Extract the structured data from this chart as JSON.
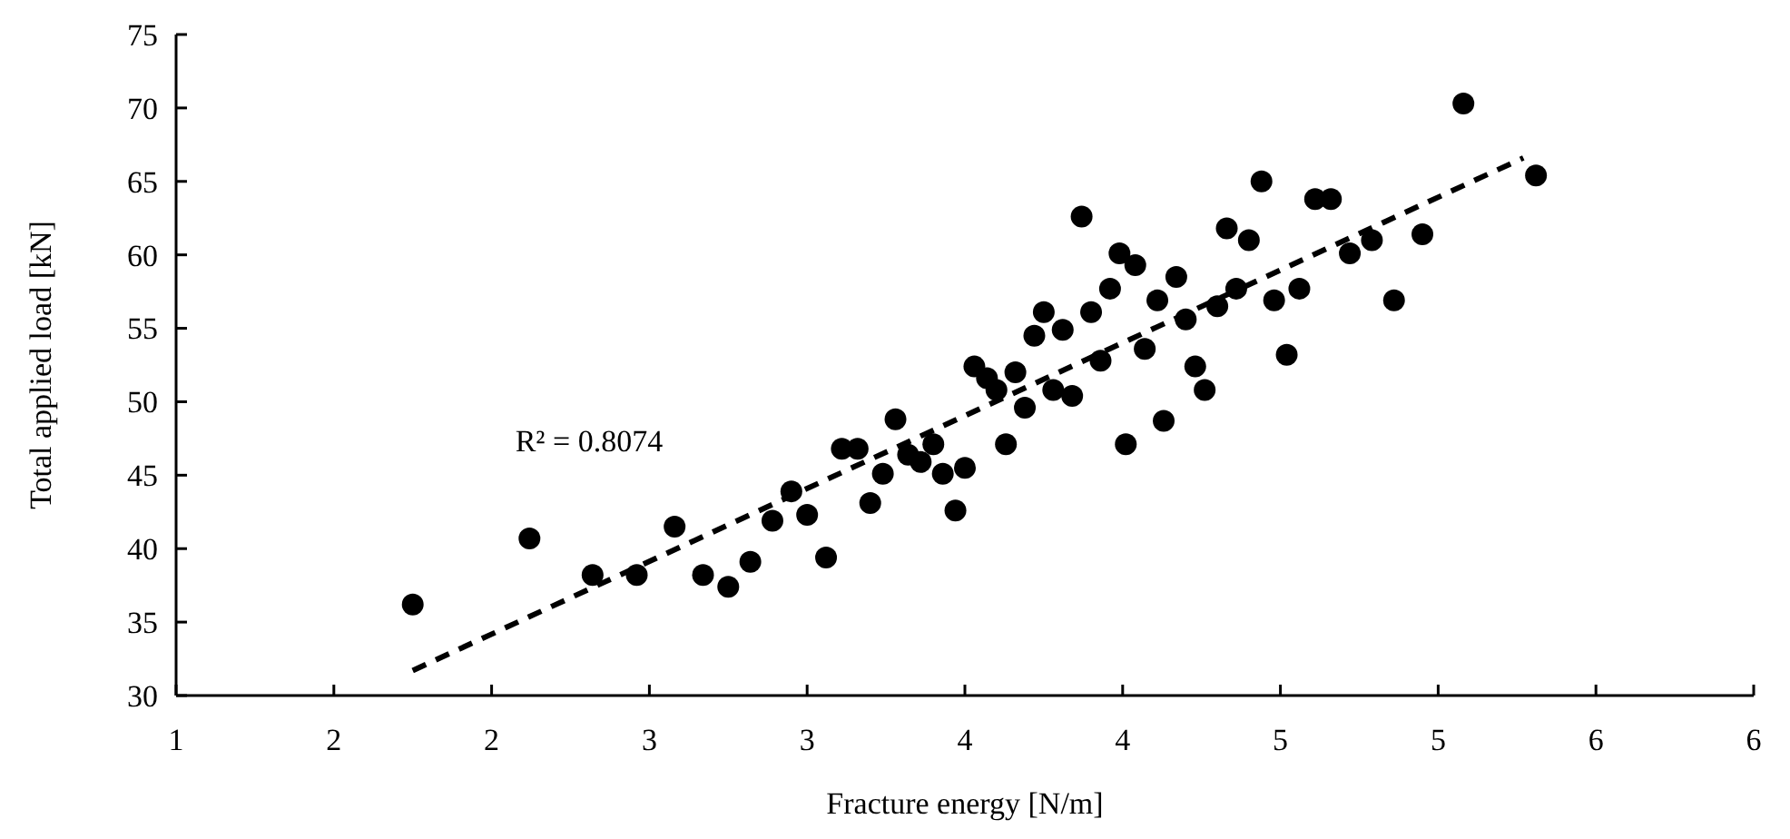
{
  "chart_data": {
    "type": "scatter",
    "xlabel": "Fracture energy [N/m]",
    "ylabel": "Total applied load [kN]",
    "xlim": [
      1,
      6
    ],
    "ylim": [
      30,
      75
    ],
    "xticks": [
      1,
      {
        "value": 1.5,
        "label": "2"
      },
      2,
      {
        "value": 2.5,
        "label": "3"
      },
      3,
      {
        "value": 3.5,
        "label": "4"
      },
      4,
      {
        "value": 4.5,
        "label": "5"
      },
      5,
      {
        "value": 5.5,
        "label": "6"
      },
      6
    ],
    "yticks": [
      30,
      35,
      40,
      45,
      50,
      55,
      60,
      65,
      70,
      75
    ],
    "grid": false,
    "marker": "circle",
    "annotations": [
      "R² = 0.8074"
    ],
    "series": [
      {
        "color": "#000000",
        "x": [
          1.75,
          2.12,
          2.32,
          2.46,
          2.58,
          2.67,
          2.75,
          2.82,
          2.89,
          2.95,
          3.0,
          3.06,
          3.11,
          3.16,
          3.2,
          3.24,
          3.28,
          3.32,
          3.36,
          3.4,
          3.43,
          3.47,
          3.5,
          3.53,
          3.57,
          3.6,
          3.63,
          3.66,
          3.69,
          3.72,
          3.75,
          3.78,
          3.81,
          3.84,
          3.87,
          3.9,
          3.93,
          3.96,
          3.99,
          4.01,
          4.04,
          4.07,
          4.11,
          4.13,
          4.17,
          4.2,
          4.23,
          4.26,
          4.3,
          4.33,
          4.36,
          4.4,
          4.44,
          4.48,
          4.52,
          4.56,
          4.61,
          4.66,
          4.72,
          4.79,
          4.86,
          4.95,
          5.08,
          5.31
        ],
        "values": [
          36.2,
          40.7,
          38.2,
          38.2,
          41.5,
          38.2,
          37.4,
          39.1,
          41.9,
          43.9,
          42.3,
          39.4,
          46.8,
          46.8,
          43.1,
          45.1,
          48.8,
          46.4,
          45.9,
          47.1,
          45.1,
          42.6,
          45.5,
          52.4,
          51.6,
          50.8,
          47.1,
          52.0,
          49.6,
          54.5,
          56.1,
          50.8,
          54.9,
          50.4,
          62.6,
          56.1,
          52.8,
          57.7,
          60.1,
          47.1,
          59.3,
          53.6,
          56.9,
          48.7,
          58.5,
          55.6,
          52.4,
          50.8,
          56.5,
          61.8,
          57.7,
          61.0,
          65.0,
          56.9,
          53.2,
          57.7,
          63.8,
          63.8,
          60.1,
          61.0,
          56.9,
          61.4,
          70.3,
          65.4
        ]
      },
      {
        "type": "line",
        "color": "#000000",
        "marker": "none",
        "line_style": "dashed",
        "x": [
          1.75,
          5.27
        ],
        "values": [
          31.7,
          66.6
        ]
      }
    ]
  }
}
